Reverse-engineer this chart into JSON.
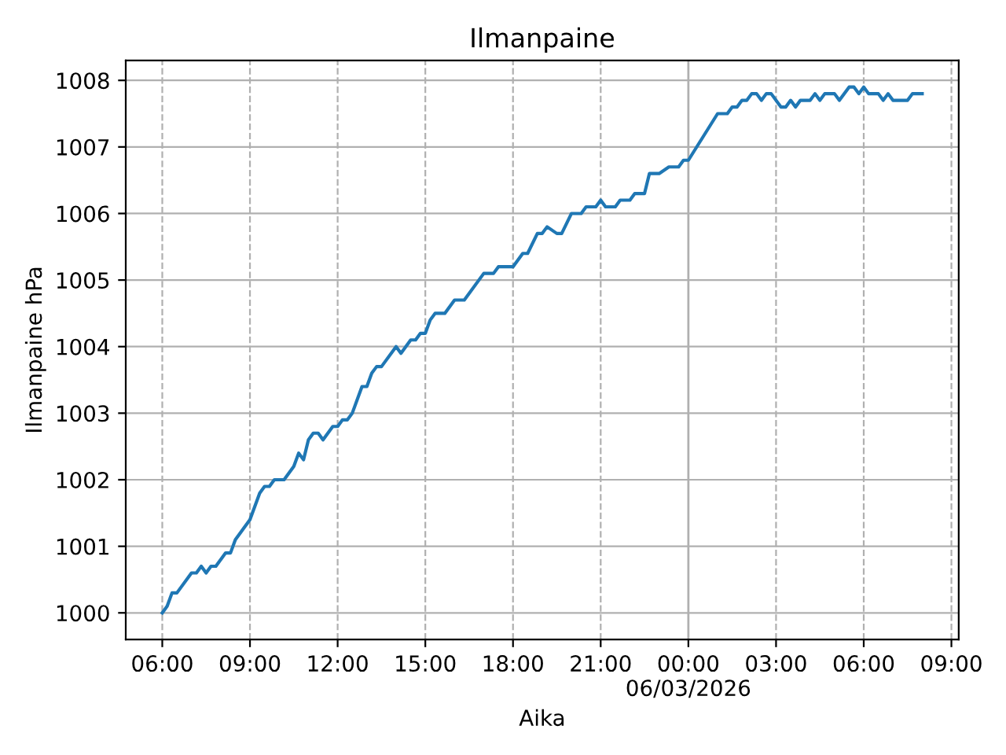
{
  "chart_data": {
    "type": "line",
    "title": "Ilmanpaine",
    "xlabel": "Aika",
    "ylabel": "Ilmanpaine hPa",
    "x": [
      "2026-03-05T06:00",
      "2026-03-05T06:10",
      "2026-03-05T06:20",
      "2026-03-05T06:30",
      "2026-03-05T07:00",
      "2026-03-05T07:10",
      "2026-03-05T07:20",
      "2026-03-05T07:30",
      "2026-03-05T07:40",
      "2026-03-05T07:50",
      "2026-03-05T08:10",
      "2026-03-05T08:20",
      "2026-03-05T08:30",
      "2026-03-05T09:00",
      "2026-03-05T09:20",
      "2026-03-05T09:30",
      "2026-03-05T09:40",
      "2026-03-05T09:50",
      "2026-03-05T10:10",
      "2026-03-05T10:30",
      "2026-03-05T10:40",
      "2026-03-05T10:50",
      "2026-03-05T11:00",
      "2026-03-05T11:10",
      "2026-03-05T11:20",
      "2026-03-05T11:30",
      "2026-03-05T11:50",
      "2026-03-05T12:00",
      "2026-03-05T12:10",
      "2026-03-05T12:20",
      "2026-03-05T12:30",
      "2026-03-05T12:50",
      "2026-03-05T13:00",
      "2026-03-05T13:10",
      "2026-03-05T13:20",
      "2026-03-05T13:30",
      "2026-03-05T14:00",
      "2026-03-05T14:10",
      "2026-03-05T14:30",
      "2026-03-05T14:40",
      "2026-03-05T14:50",
      "2026-03-05T15:00",
      "2026-03-05T15:10",
      "2026-03-05T15:20",
      "2026-03-05T15:40",
      "2026-03-05T16:00",
      "2026-03-05T16:20",
      "2026-03-05T17:00",
      "2026-03-05T17:20",
      "2026-03-05T17:30",
      "2026-03-05T18:00",
      "2026-03-05T18:20",
      "2026-03-05T18:30",
      "2026-03-05T18:50",
      "2026-03-05T19:00",
      "2026-03-05T19:10",
      "2026-03-05T19:30",
      "2026-03-05T19:40",
      "2026-03-05T20:00",
      "2026-03-05T20:20",
      "2026-03-05T20:30",
      "2026-03-05T20:50",
      "2026-03-05T21:00",
      "2026-03-05T21:10",
      "2026-03-05T21:30",
      "2026-03-05T21:40",
      "2026-03-05T22:00",
      "2026-03-05T22:10",
      "2026-03-05T22:30",
      "2026-03-05T22:40",
      "2026-03-05T23:00",
      "2026-03-05T23:20",
      "2026-03-05T23:40",
      "2026-03-05T23:50",
      "2026-03-06T00:00",
      "2026-03-06T01:00",
      "2026-03-06T01:20",
      "2026-03-06T01:30",
      "2026-03-06T01:40",
      "2026-03-06T01:50",
      "2026-03-06T02:00",
      "2026-03-06T02:10",
      "2026-03-06T02:20",
      "2026-03-06T02:30",
      "2026-03-06T02:40",
      "2026-03-06T02:50",
      "2026-03-06T03:10",
      "2026-03-06T03:20",
      "2026-03-06T03:30",
      "2026-03-06T03:40",
      "2026-03-06T03:50",
      "2026-03-06T04:10",
      "2026-03-06T04:20",
      "2026-03-06T04:30",
      "2026-03-06T04:40",
      "2026-03-06T05:00",
      "2026-03-06T05:10",
      "2026-03-06T05:30",
      "2026-03-06T05:40",
      "2026-03-06T05:50",
      "2026-03-06T06:00",
      "2026-03-06T06:10",
      "2026-03-06T06:30",
      "2026-03-06T06:40",
      "2026-03-06T06:50",
      "2026-03-06T07:00",
      "2026-03-06T07:30",
      "2026-03-06T07:40",
      "2026-03-06T08:00"
    ],
    "series": [
      {
        "color": "#1f77b4",
        "values": [
          1000.0,
          1000.1,
          1000.3,
          1000.3,
          1000.6,
          1000.6,
          1000.7,
          1000.6,
          1000.7,
          1000.7,
          1000.9,
          1000.9,
          1001.1,
          1001.4,
          1001.8,
          1001.9,
          1001.9,
          1002.0,
          1002.0,
          1002.2,
          1002.4,
          1002.3,
          1002.6,
          1002.7,
          1002.7,
          1002.6,
          1002.8,
          1002.8,
          1002.9,
          1002.9,
          1003.0,
          1003.4,
          1003.4,
          1003.6,
          1003.7,
          1003.7,
          1004.0,
          1003.9,
          1004.1,
          1004.1,
          1004.2,
          1004.2,
          1004.4,
          1004.5,
          1004.5,
          1004.7,
          1004.7,
          1005.1,
          1005.1,
          1005.2,
          1005.2,
          1005.4,
          1005.4,
          1005.7,
          1005.7,
          1005.8,
          1005.7,
          1005.7,
          1006.0,
          1006.0,
          1006.1,
          1006.1,
          1006.2,
          1006.1,
          1006.1,
          1006.2,
          1006.2,
          1006.3,
          1006.3,
          1006.6,
          1006.6,
          1006.7,
          1006.7,
          1006.8,
          1006.8,
          1007.5,
          1007.5,
          1007.6,
          1007.6,
          1007.7,
          1007.7,
          1007.8,
          1007.8,
          1007.7,
          1007.8,
          1007.8,
          1007.6,
          1007.6,
          1007.7,
          1007.6,
          1007.7,
          1007.7,
          1007.8,
          1007.7,
          1007.8,
          1007.8,
          1007.7,
          1007.9,
          1007.9,
          1007.8,
          1007.9,
          1007.8,
          1007.8,
          1007.7,
          1007.8,
          1007.7,
          1007.7,
          1007.8,
          1007.8
        ]
      }
    ],
    "xlim": [
      "2026-03-05T04:45",
      "2026-03-06T09:15"
    ],
    "xticks": [
      {
        "value": "2026-03-05T06:00",
        "label": "06:00"
      },
      {
        "value": "2026-03-05T09:00",
        "label": "09:00"
      },
      {
        "value": "2026-03-05T12:00",
        "label": "12:00"
      },
      {
        "value": "2026-03-05T15:00",
        "label": "15:00"
      },
      {
        "value": "2026-03-05T18:00",
        "label": "18:00"
      },
      {
        "value": "2026-03-05T21:00",
        "label": "21:00"
      },
      {
        "value": "2026-03-06T00:00",
        "label": "00:00\n06/03/2026"
      },
      {
        "value": "2026-03-06T03:00",
        "label": "03:00"
      },
      {
        "value": "2026-03-06T06:00",
        "label": "06:00"
      },
      {
        "value": "2026-03-06T09:00",
        "label": "09:00"
      }
    ],
    "ylim": [
      999.6,
      1008.3
    ],
    "yticks": [
      1000,
      1001,
      1002,
      1003,
      1004,
      1005,
      1006,
      1007,
      1008
    ],
    "grid": true,
    "ref_lines": [
      {
        "axis": "x",
        "value": "2026-03-06T00:00",
        "color": "#b0b0b0",
        "line_style": "solid"
      }
    ],
    "marker": "none",
    "line_style": "solid"
  }
}
